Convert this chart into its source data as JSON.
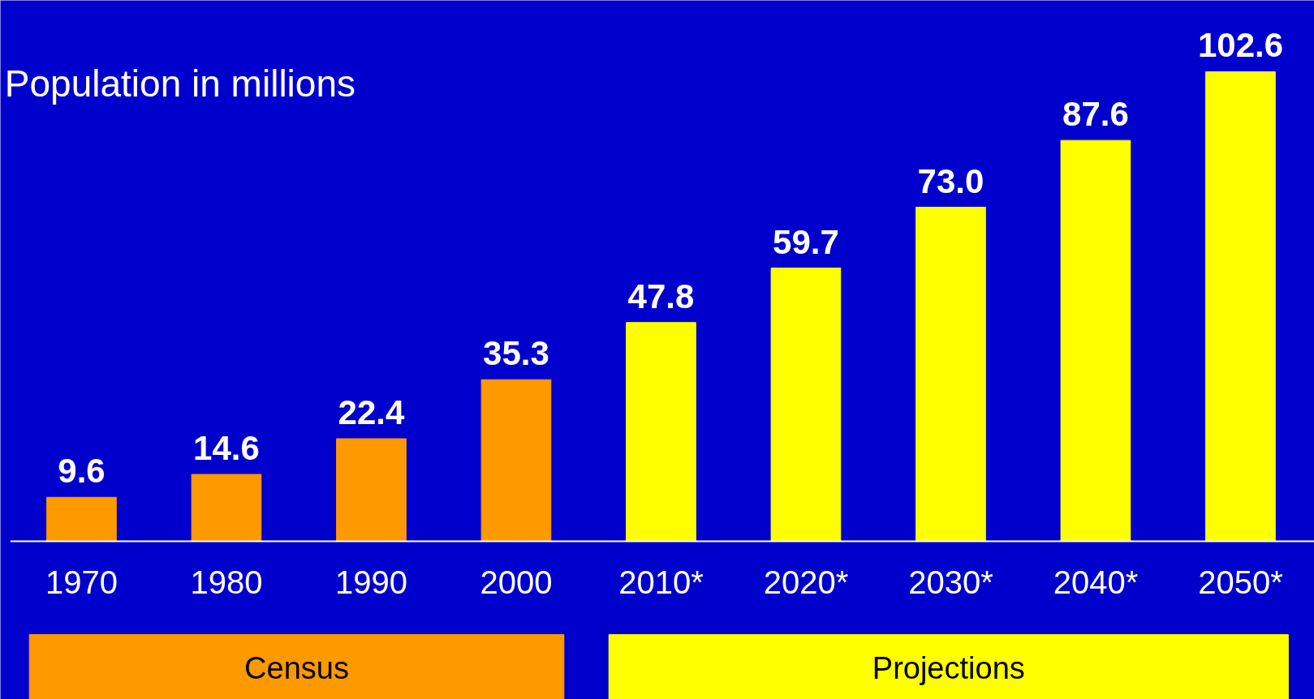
{
  "chart_data": {
    "type": "bar",
    "subtitle": "Population in millions",
    "categories": [
      "1970",
      "1980",
      "1990",
      "2000",
      "2010*",
      "2020*",
      "2030*",
      "2040*",
      "2050*"
    ],
    "series": [
      {
        "name": "Census",
        "color": "#ff9900",
        "values": [
          9.6,
          14.6,
          22.4,
          35.3,
          null,
          null,
          null,
          null,
          null
        ],
        "value_labels": [
          "9.6",
          "14.6",
          "22.4",
          "35.3",
          null,
          null,
          null,
          null,
          null
        ]
      },
      {
        "name": "Projections",
        "color": "#ffff00",
        "values": [
          null,
          null,
          null,
          null,
          47.8,
          59.7,
          73.0,
          87.6,
          102.6
        ],
        "value_labels": [
          null,
          null,
          null,
          null,
          "47.8",
          "59.7",
          "73.0",
          "87.6",
          "102.6"
        ]
      }
    ],
    "legend": "bottom",
    "grid": false
  }
}
